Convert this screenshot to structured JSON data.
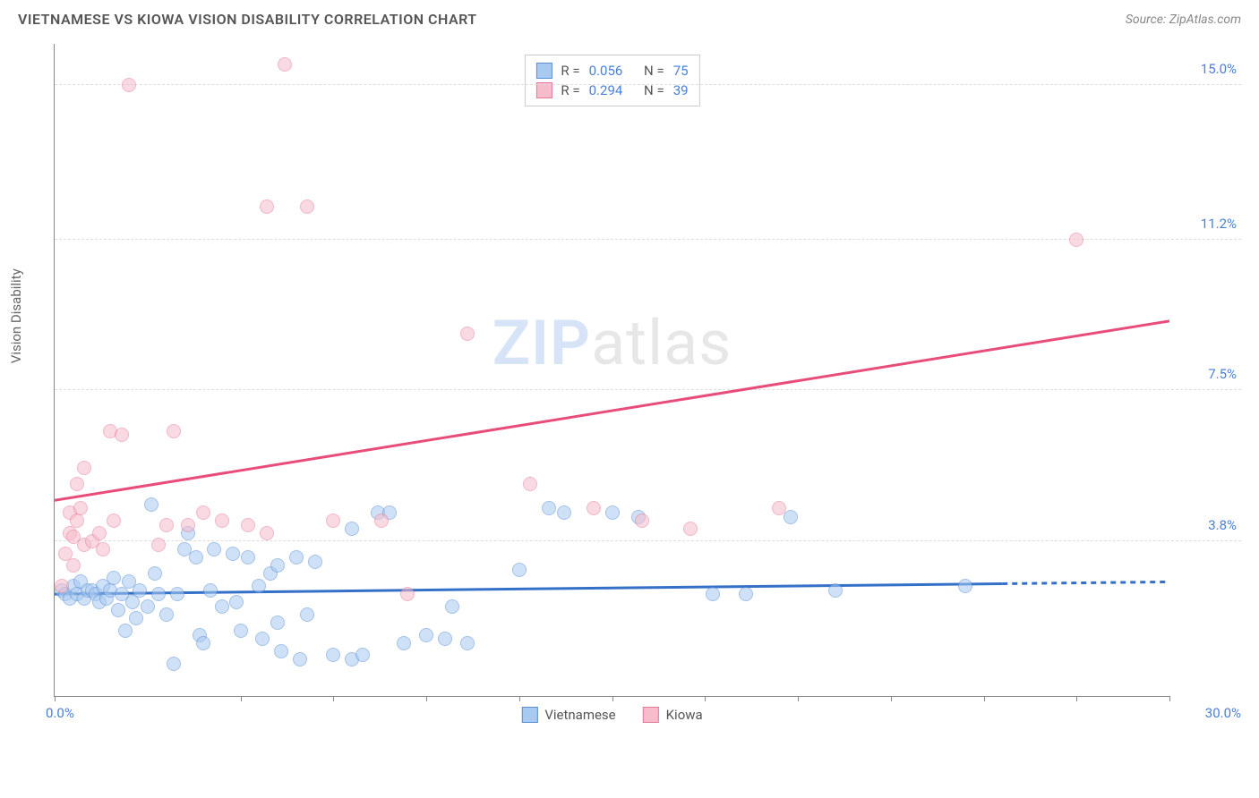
{
  "header": {
    "title": "VIETNAMESE VS KIOWA VISION DISABILITY CORRELATION CHART",
    "source": "Source: ZipAtlas.com"
  },
  "watermark": {
    "zip": "ZIP",
    "atlas": "atlas"
  },
  "chart": {
    "type": "scatter",
    "y_axis_title": "Vision Disability",
    "xlim": [
      0,
      30
    ],
    "ylim": [
      0,
      16
    ],
    "x_labels": {
      "start": "0.0%",
      "end": "30.0%"
    },
    "x_ticks": [
      0,
      5,
      7.5,
      10,
      12.5,
      15,
      17.5,
      20,
      22.5,
      25,
      27.5,
      30
    ],
    "y_gridlines": [
      {
        "value": 3.8,
        "label": "3.8%"
      },
      {
        "value": 7.5,
        "label": "7.5%"
      },
      {
        "value": 11.2,
        "label": "11.2%"
      },
      {
        "value": 15.0,
        "label": "15.0%"
      }
    ],
    "background_color": "#ffffff",
    "grid_color": "#dddddd",
    "series": [
      {
        "name": "Vietnamese",
        "fill_color": "#a8c9f0",
        "stroke_color": "#5a8fd8",
        "fill_opacity": 0.55,
        "marker_radius": 8,
        "R_label": "R =",
        "R": "0.056",
        "N_label": "N =",
        "N": "75",
        "trend": {
          "y_start": 2.5,
          "y_end": 2.8,
          "color": "#3470c8",
          "dash_from_x": 25.5
        },
        "points": [
          [
            0.2,
            2.6
          ],
          [
            0.3,
            2.5
          ],
          [
            0.4,
            2.4
          ],
          [
            0.5,
            2.7
          ],
          [
            0.6,
            2.5
          ],
          [
            0.7,
            2.8
          ],
          [
            0.8,
            2.4
          ],
          [
            0.9,
            2.6
          ],
          [
            1.0,
            2.6
          ],
          [
            1.1,
            2.5
          ],
          [
            1.2,
            2.3
          ],
          [
            1.3,
            2.7
          ],
          [
            1.4,
            2.4
          ],
          [
            1.5,
            2.6
          ],
          [
            1.6,
            2.9
          ],
          [
            1.7,
            2.1
          ],
          [
            1.8,
            2.5
          ],
          [
            1.9,
            1.6
          ],
          [
            2.0,
            2.8
          ],
          [
            2.1,
            2.3
          ],
          [
            2.2,
            1.9
          ],
          [
            2.3,
            2.6
          ],
          [
            2.5,
            2.2
          ],
          [
            2.6,
            4.7
          ],
          [
            2.7,
            3.0
          ],
          [
            2.8,
            2.5
          ],
          [
            3.0,
            2.0
          ],
          [
            3.2,
            0.8
          ],
          [
            3.3,
            2.5
          ],
          [
            3.5,
            3.6
          ],
          [
            3.6,
            4.0
          ],
          [
            3.8,
            3.4
          ],
          [
            3.9,
            1.5
          ],
          [
            4.0,
            1.3
          ],
          [
            4.2,
            2.6
          ],
          [
            4.3,
            3.6
          ],
          [
            4.5,
            2.2
          ],
          [
            4.8,
            3.5
          ],
          [
            4.9,
            2.3
          ],
          [
            5.0,
            1.6
          ],
          [
            5.2,
            3.4
          ],
          [
            5.5,
            2.7
          ],
          [
            5.6,
            1.4
          ],
          [
            5.8,
            3.0
          ],
          [
            6.0,
            1.8
          ],
          [
            6.0,
            3.2
          ],
          [
            6.1,
            1.1
          ],
          [
            6.5,
            3.4
          ],
          [
            6.6,
            0.9
          ],
          [
            6.8,
            2.0
          ],
          [
            7.0,
            3.3
          ],
          [
            7.5,
            1.0
          ],
          [
            8.0,
            4.1
          ],
          [
            8.0,
            0.9
          ],
          [
            8.3,
            1.0
          ],
          [
            8.7,
            4.5
          ],
          [
            9.0,
            4.5
          ],
          [
            9.4,
            1.3
          ],
          [
            10.0,
            1.5
          ],
          [
            10.5,
            1.4
          ],
          [
            10.7,
            2.2
          ],
          [
            11.1,
            1.3
          ],
          [
            12.5,
            3.1
          ],
          [
            13.3,
            4.6
          ],
          [
            13.7,
            4.5
          ],
          [
            15.0,
            4.5
          ],
          [
            15.7,
            4.4
          ],
          [
            17.7,
            2.5
          ],
          [
            18.6,
            2.5
          ],
          [
            19.8,
            4.4
          ],
          [
            21.0,
            2.6
          ],
          [
            24.5,
            2.7
          ]
        ]
      },
      {
        "name": "Kiowa",
        "fill_color": "#f7bccb",
        "stroke_color": "#e87a99",
        "fill_opacity": 0.55,
        "marker_radius": 8,
        "R_label": "R =",
        "R": "0.294",
        "N_label": "N =",
        "N": "39",
        "trend": {
          "y_start": 4.8,
          "y_end": 9.2,
          "color": "#e84d7a",
          "dash_from_x": 30
        },
        "points": [
          [
            0.2,
            2.7
          ],
          [
            0.3,
            3.5
          ],
          [
            0.4,
            4.0
          ],
          [
            0.4,
            4.5
          ],
          [
            0.5,
            3.2
          ],
          [
            0.5,
            3.9
          ],
          [
            0.6,
            5.2
          ],
          [
            0.6,
            4.3
          ],
          [
            0.7,
            4.6
          ],
          [
            0.8,
            3.7
          ],
          [
            0.8,
            5.6
          ],
          [
            1.0,
            3.8
          ],
          [
            1.2,
            4.0
          ],
          [
            1.3,
            3.6
          ],
          [
            1.5,
            6.5
          ],
          [
            1.6,
            4.3
          ],
          [
            1.8,
            6.4
          ],
          [
            2.0,
            15.0
          ],
          [
            2.8,
            3.7
          ],
          [
            3.0,
            4.2
          ],
          [
            3.2,
            6.5
          ],
          [
            3.6,
            4.2
          ],
          [
            4.0,
            4.5
          ],
          [
            4.5,
            4.3
          ],
          [
            5.2,
            4.2
          ],
          [
            5.7,
            4.0
          ],
          [
            5.7,
            12.0
          ],
          [
            6.2,
            15.5
          ],
          [
            6.8,
            12.0
          ],
          [
            7.5,
            4.3
          ],
          [
            8.8,
            4.3
          ],
          [
            9.5,
            2.5
          ],
          [
            11.1,
            8.9
          ],
          [
            12.8,
            5.2
          ],
          [
            14.5,
            4.6
          ],
          [
            15.8,
            4.3
          ],
          [
            17.1,
            4.1
          ],
          [
            19.5,
            4.6
          ],
          [
            27.5,
            11.2
          ]
        ]
      }
    ],
    "legend_bottom": [
      "Vietnamese",
      "Kiowa"
    ]
  }
}
